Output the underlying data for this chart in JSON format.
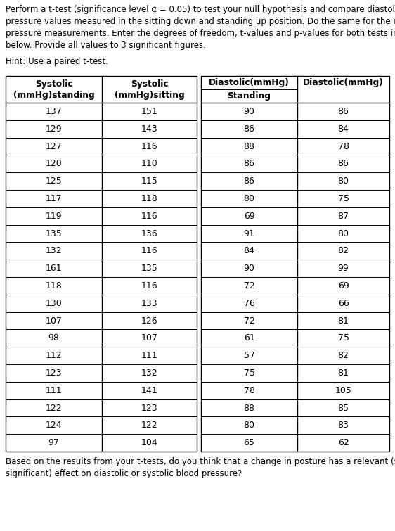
{
  "intro_text_lines": [
    "Perform a t-test (significance level α = 0.05) to test your null hypothesis and compare diastolic blood",
    "pressure values measured in the sitting down and standing up position. Do the same for the mean systolic",
    "pressure measurements. Enter the degrees of freedom, t-values and p-values for both tests in the table",
    "below. Provide all values to 3 significant figures."
  ],
  "hint_text": "Hint: Use a paired t-test.",
  "footer_text_lines": [
    "Based on the results from your t-tests, do you think that a change in posture has a relevant (statistically",
    "significant) effect on diastolic or systolic blood pressure?"
  ],
  "col_headers_left": [
    "Systolic\n(mmHg)standing",
    "Systolic\n(mmHg)sitting"
  ],
  "col_headers_right_line1": [
    "Diastolic(mmHg)",
    "Diastolic(mmHg)"
  ],
  "col_headers_right_line2": [
    "Standing",
    ""
  ],
  "systolic_standing": [
    137,
    129,
    127,
    120,
    125,
    117,
    119,
    135,
    132,
    161,
    118,
    130,
    107,
    98,
    112,
    123,
    111,
    122,
    124,
    97
  ],
  "systolic_sitting": [
    151,
    143,
    116,
    110,
    115,
    118,
    116,
    136,
    116,
    135,
    116,
    133,
    126,
    107,
    111,
    132,
    141,
    123,
    122,
    104
  ],
  "diastolic_standing": [
    90,
    86,
    88,
    86,
    86,
    80,
    69,
    91,
    84,
    90,
    72,
    76,
    72,
    61,
    57,
    75,
    78,
    88,
    80,
    65
  ],
  "diastolic_sitting": [
    86,
    84,
    78,
    86,
    80,
    75,
    87,
    80,
    82,
    99,
    69,
    66,
    81,
    75,
    82,
    81,
    105,
    85,
    83,
    62
  ],
  "bg_color": "#ffffff",
  "text_color": "#000000",
  "table_border_color": "#000000",
  "font_size_body": 8.5,
  "font_size_table_data": 9.0,
  "font_size_table_header": 8.8
}
